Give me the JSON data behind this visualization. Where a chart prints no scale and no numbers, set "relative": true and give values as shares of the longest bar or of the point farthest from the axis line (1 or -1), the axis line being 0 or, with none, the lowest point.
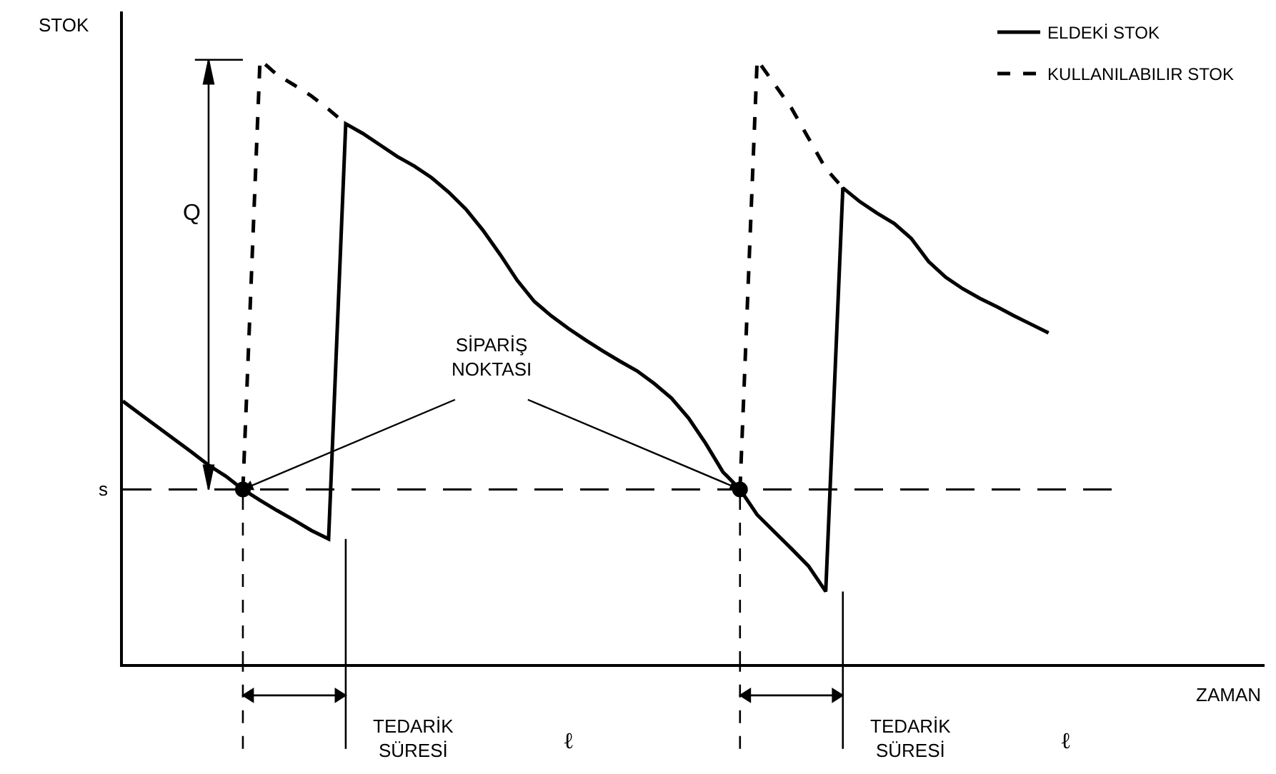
{
  "chart_data": {
    "type": "line",
    "relative": true,
    "xlabel": "ZAMAN",
    "ylabel": "STOK",
    "legend": "top right",
    "marker": "none",
    "categories": [
      null,
      null,
      null,
      null,
      null,
      null,
      null,
      null,
      null,
      null,
      null,
      null,
      null,
      null,
      null,
      null,
      null,
      null,
      null,
      null,
      null,
      null,
      null,
      null,
      null,
      null,
      null,
      null,
      null,
      null,
      null,
      null,
      null,
      null,
      null,
      null,
      null,
      null,
      null,
      null,
      null,
      null,
      null,
      null,
      null,
      null,
      null,
      null,
      null,
      null,
      null,
      null,
      null,
      null,
      null,
      null,
      null,
      null,
      null,
      null,
      null,
      null,
      null,
      null,
      null,
      null,
      null
    ],
    "series": [
      {
        "name": "ELDEKİ STOK",
        "color": "#000000",
        "line_style": "solid",
        "values": [
          0.435,
          0.414,
          0.393,
          0.372,
          0.351,
          0.329,
          0.311,
          0.289,
          0.271,
          0.254,
          0.238,
          0.221,
          0.207,
          0.894,
          0.878,
          0.859,
          0.84,
          0.824,
          0.805,
          0.781,
          0.753,
          0.718,
          0.678,
          0.635,
          0.6,
          0.576,
          0.555,
          0.536,
          0.518,
          0.501,
          0.485,
          0.464,
          0.44,
          0.407,
          0.365,
          0.318,
          0.289,
          0.247,
          0.219,
          0.191,
          0.162,
          0.12,
          0.788,
          0.765,
          0.746,
          0.729,
          0.704,
          0.666,
          0.64,
          0.621,
          0.605,
          0.591,
          0.576,
          0.562,
          0.548,
          null,
          null,
          null,
          null,
          null,
          null,
          null,
          null,
          null,
          null,
          null,
          null
        ]
      },
      {
        "name": "KULLANILABILIR STOK",
        "color": "#000000",
        "line_style": "dashed",
        "values": [
          null,
          null,
          null,
          null,
          null,
          null,
          null,
          0.289,
          1.0,
          0.975,
          0.958,
          0.94,
          0.918,
          0.894,
          null,
          null,
          null,
          null,
          null,
          null,
          null,
          null,
          null,
          null,
          null,
          null,
          null,
          null,
          null,
          null,
          null,
          null,
          null,
          null,
          null,
          null,
          null,
          null,
          null,
          null,
          null,
          null,
          null,
          null,
          null,
          null,
          null,
          null,
          null,
          null,
          null,
          null,
          null,
          null,
          null,
          null,
          null,
          null,
          null,
          null,
          null,
          null,
          null,
          null,
          null,
          null,
          null
        ]
      },
      {
        "color": "#000000",
        "line_style": "dashed",
        "values": [
          null,
          null,
          null,
          null,
          null,
          null,
          null,
          null,
          null,
          null,
          null,
          null,
          null,
          null,
          null,
          null,
          null,
          null,
          null,
          null,
          null,
          null,
          null,
          null,
          null,
          null,
          null,
          null,
          null,
          null,
          null,
          null,
          null,
          null,
          null,
          null,
          0.289,
          1.0,
          0.96,
          0.92,
          0.87,
          0.82,
          0.788,
          null,
          null,
          null,
          null,
          null,
          null,
          null,
          null,
          null,
          null,
          null,
          null,
          null,
          null,
          null,
          null,
          null,
          null,
          null,
          null,
          null,
          null,
          null,
          null
        ]
      }
    ],
    "ref_lines": [
      {
        "axis": "y",
        "value": 0.289,
        "label": "s",
        "color": "#000000",
        "line_style": "dashed"
      }
    ],
    "annotations": [
      "Q",
      "SİPARİŞ NOKTASI",
      "TEDARİK SÜRESİ",
      "ℓ",
      "TEDARİK SÜRESİ",
      "ℓ"
    ]
  }
}
